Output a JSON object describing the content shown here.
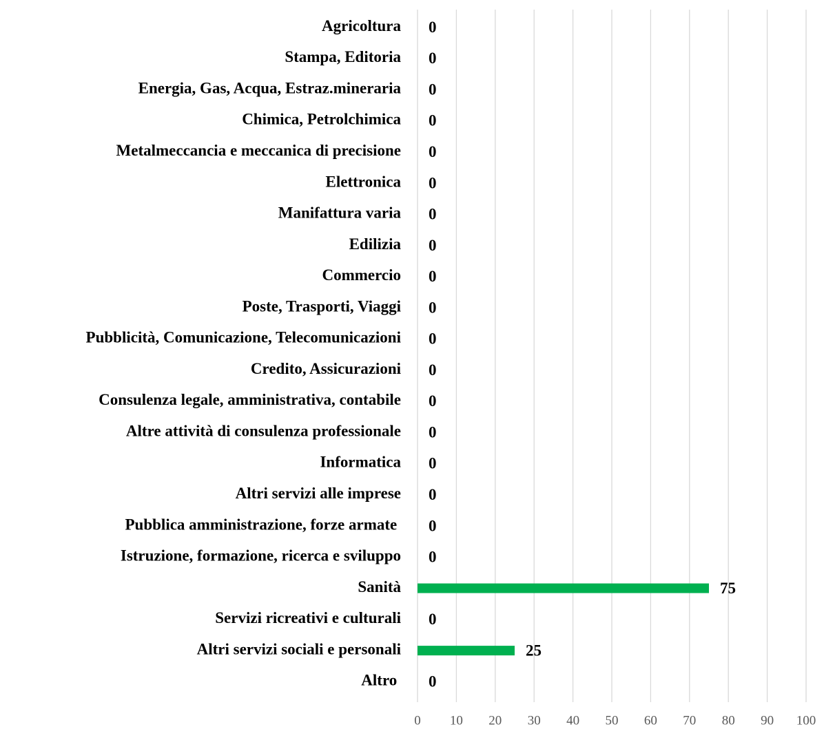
{
  "chart_data": {
    "type": "bar",
    "orientation": "horizontal",
    "categories": [
      "Agricoltura",
      "Stampa, Editoria",
      "Energia, Gas, Acqua, Estraz.mineraria",
      "Chimica, Petrolchimica",
      "Metalmeccancia e meccanica di precisione",
      "Elettronica",
      "Manifattura varia",
      "Edilizia",
      "Commercio",
      "Poste, Trasporti, Viaggi",
      "Pubblicità, Comunicazione, Telecomunicazioni",
      "Credito, Assicurazioni",
      "Consulenza legale, amministrativa, contabile",
      "Altre attività di consulenza professionale",
      "Informatica",
      "Altri servizi alle imprese",
      "Pubblica amministrazione, forze armate ",
      "Istruzione, formazione, ricerca e sviluppo",
      "Sanità",
      "Servizi ricreativi e culturali",
      "Altri servizi sociali e personali",
      "Altro "
    ],
    "values": [
      0,
      0,
      0,
      0,
      0,
      0,
      0,
      0,
      0,
      0,
      0,
      0,
      0,
      0,
      0,
      0,
      0,
      0,
      75,
      0,
      25,
      0
    ],
    "color": "#00b050",
    "xlim": [
      0,
      100
    ],
    "xticks": [
      0,
      10,
      20,
      30,
      40,
      50,
      60,
      70,
      80,
      90,
      100
    ],
    "grid": true
  }
}
